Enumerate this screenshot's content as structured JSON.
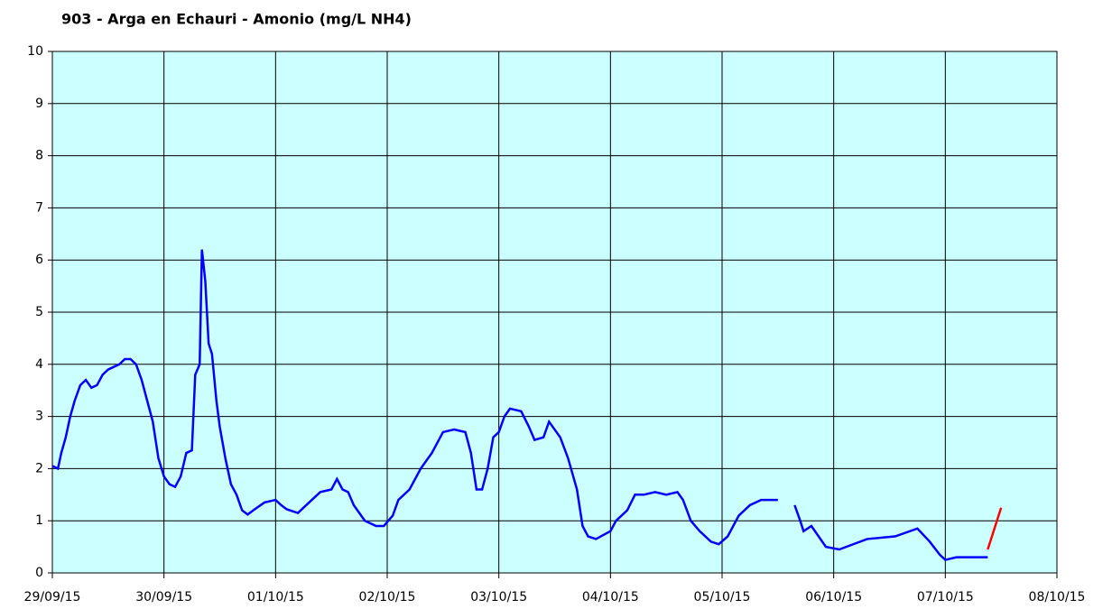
{
  "chart_data": {
    "type": "line",
    "title": "903 - Arga en Echauri - Amonio (mg/L NH4)",
    "xlim": [
      0,
      9
    ],
    "xticks": [
      {
        "value": 0,
        "label": "29/09/15"
      },
      {
        "value": 1,
        "label": "30/09/15"
      },
      {
        "value": 2,
        "label": "01/10/15"
      },
      {
        "value": 3,
        "label": "02/10/15"
      },
      {
        "value": 4,
        "label": "03/10/15"
      },
      {
        "value": 5,
        "label": "04/10/15"
      },
      {
        "value": 6,
        "label": "05/10/15"
      },
      {
        "value": 7,
        "label": "06/10/15"
      },
      {
        "value": 8,
        "label": "07/10/15"
      },
      {
        "value": 9,
        "label": "08/10/15"
      }
    ],
    "ylim": [
      0,
      10
    ],
    "yticks": [
      0,
      1,
      2,
      3,
      4,
      5,
      6,
      7,
      8,
      9,
      10
    ],
    "grid": true,
    "background": "#ccffff",
    "series": [
      {
        "color": "#0000ff",
        "x": [
          0,
          0.05,
          0.08,
          0.12,
          0.16,
          0.2,
          0.25,
          0.3,
          0.35,
          0.4,
          0.45,
          0.5,
          0.55,
          0.6,
          0.65,
          0.7,
          0.75,
          0.8,
          0.85,
          0.9,
          0.95,
          1.0,
          1.05,
          1.1,
          1.15,
          1.2,
          1.25,
          1.28,
          1.32,
          1.34,
          1.37,
          1.4,
          1.43,
          1.47,
          1.5,
          1.55,
          1.6,
          1.65,
          1.7,
          1.75,
          1.8,
          1.9,
          2.0,
          2.05,
          2.1,
          2.2,
          2.3,
          2.4,
          2.5,
          2.55,
          2.6,
          2.65,
          2.7,
          2.8,
          2.9,
          2.97,
          3.05,
          3.1,
          3.2,
          3.3,
          3.4,
          3.5,
          3.6,
          3.7,
          3.75,
          3.8,
          3.85,
          3.9,
          3.95,
          4.0,
          4.05,
          4.1,
          4.2,
          4.27,
          4.32,
          4.4,
          4.45,
          4.5,
          4.55,
          4.62,
          4.7,
          4.75,
          4.8,
          4.87,
          5.0,
          5.05,
          5.15,
          5.22,
          5.3,
          5.4,
          5.5,
          5.6,
          5.65,
          5.72,
          5.8,
          5.9,
          5.97,
          6.05,
          6.15,
          6.25,
          6.35,
          6.5,
          6.6,
          6.65,
          6.7,
          6.73,
          6.8,
          6.93,
          7.05,
          7.3,
          7.55,
          7.75,
          7.86,
          7.95,
          8.0,
          8.1,
          8.38
        ],
        "values": [
          2.05,
          2.0,
          2.3,
          2.6,
          3.0,
          3.3,
          3.6,
          3.7,
          3.55,
          3.6,
          3.8,
          3.9,
          3.95,
          4.0,
          4.1,
          4.1,
          4.0,
          3.7,
          3.3,
          2.9,
          2.2,
          1.85,
          1.7,
          1.65,
          1.85,
          2.3,
          2.35,
          3.8,
          4.0,
          6.2,
          5.6,
          4.4,
          4.2,
          3.3,
          2.8,
          2.2,
          1.7,
          1.5,
          1.2,
          1.12,
          1.2,
          1.35,
          1.4,
          1.3,
          1.22,
          1.15,
          1.35,
          1.55,
          1.6,
          1.8,
          1.6,
          1.55,
          1.3,
          1.0,
          0.9,
          0.9,
          1.1,
          1.4,
          1.6,
          2.0,
          2.3,
          2.7,
          2.75,
          2.7,
          2.3,
          1.6,
          1.6,
          2.0,
          2.6,
          2.7,
          3.0,
          3.15,
          3.1,
          2.8,
          2.55,
          2.6,
          2.9,
          2.75,
          2.6,
          2.2,
          1.6,
          0.9,
          0.7,
          0.65,
          0.8,
          1.0,
          1.2,
          1.5,
          1.5,
          1.55,
          1.5,
          1.55,
          1.4,
          1.0,
          0.8,
          0.6,
          0.55,
          0.7,
          1.1,
          1.3,
          1.4,
          1.4,
          null,
          1.3,
          1.0,
          0.8,
          0.9,
          0.5,
          0.45,
          0.65,
          0.7,
          0.85,
          0.6,
          0.35,
          0.25,
          0.3,
          0.3
        ]
      },
      {
        "color": "#ff0000",
        "x": [
          8.38,
          8.5
        ],
        "values": [
          0.45,
          1.25
        ]
      }
    ]
  }
}
